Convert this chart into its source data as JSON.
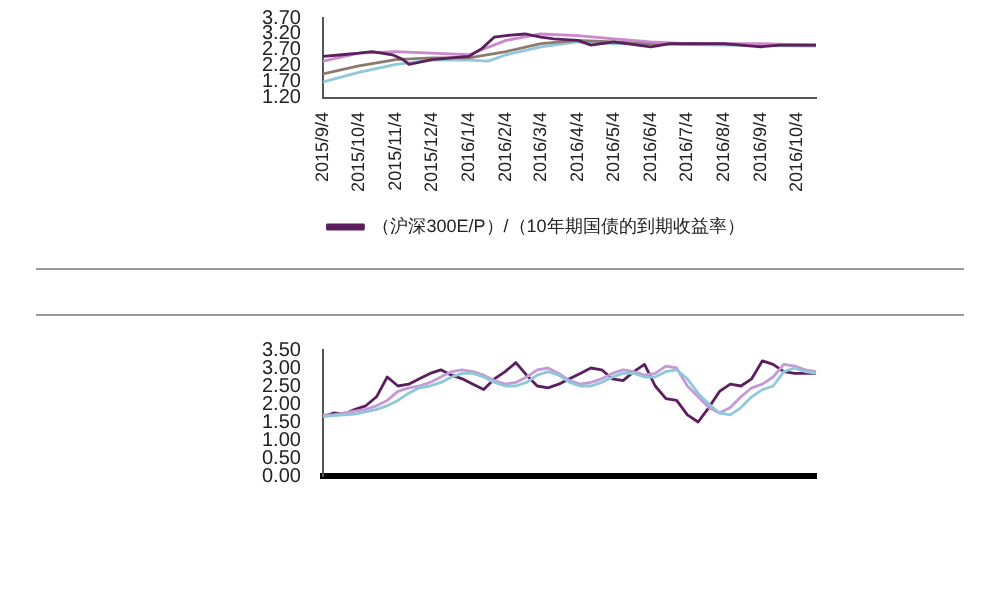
{
  "chart_data": [
    {
      "type": "line",
      "legend": "bottom",
      "grid": false,
      "marker": "none",
      "xlim": [
        "2015-09-04",
        "2016-10-20"
      ],
      "xticks": [
        {
          "value": "2015-09-04",
          "label": "2015/9/4"
        },
        {
          "value": "2015-10-04",
          "label": "2015/10/4"
        },
        {
          "value": "2015-11-04",
          "label": "2015/11/4"
        },
        {
          "value": "2015-12-04",
          "label": "2015/12/4"
        },
        {
          "value": "2016-01-04",
          "label": "2016/1/4"
        },
        {
          "value": "2016-02-04",
          "label": "2016/2/4"
        },
        {
          "value": "2016-03-04",
          "label": "2016/3/4"
        },
        {
          "value": "2016-04-04",
          "label": "2016/4/4"
        },
        {
          "value": "2016-05-04",
          "label": "2016/5/4"
        },
        {
          "value": "2016-06-04",
          "label": "2016/6/4"
        },
        {
          "value": "2016-07-04",
          "label": "2016/7/4"
        },
        {
          "value": "2016-08-04",
          "label": "2016/8/4"
        },
        {
          "value": "2016-09-04",
          "label": "2016/9/4"
        },
        {
          "value": "2016-10-04",
          "label": "2016/10/4"
        }
      ],
      "ylim": [
        1.2,
        3.7
      ],
      "yticks": [
        {
          "value": 1.2,
          "label": "1.20"
        },
        {
          "value": 1.7,
          "label": "1.70"
        },
        {
          "value": 2.2,
          "label": "2.20"
        },
        {
          "value": 2.7,
          "label": "2.70"
        },
        {
          "value": 3.2,
          "label": "3.20"
        },
        {
          "value": 3.7,
          "label": "3.70"
        }
      ],
      "series": [
        {
          "name": "（沪深300E/P）/（10年期国债的到期收益率）",
          "color": "#5b1f5e",
          "x": [
            "2015-09-04",
            "2015-09-20",
            "2015-10-04",
            "2015-10-15",
            "2015-11-01",
            "2015-11-10",
            "2015-11-15",
            "2015-12-04",
            "2015-12-20",
            "2016-01-04",
            "2016-01-15",
            "2016-01-25",
            "2016-02-04",
            "2016-02-20",
            "2016-03-04",
            "2016-03-15",
            "2016-04-04",
            "2016-04-15",
            "2016-05-04",
            "2016-06-04",
            "2016-06-20",
            "2016-07-04",
            "2016-08-04",
            "2016-09-04",
            "2016-09-20",
            "2016-10-04",
            "2016-10-20"
          ],
          "values": [
            2.5,
            2.55,
            2.6,
            2.65,
            2.55,
            2.4,
            2.25,
            2.4,
            2.45,
            2.5,
            2.75,
            3.1,
            3.15,
            3.2,
            3.1,
            3.05,
            3.0,
            2.85,
            2.95,
            2.8,
            2.9,
            2.9,
            2.9,
            2.8,
            2.85,
            2.85,
            2.85
          ]
        },
        {
          "color": "#cc88cc",
          "x": [
            "2015-09-04",
            "2015-10-04",
            "2015-11-04",
            "2015-12-04",
            "2016-01-04",
            "2016-02-04",
            "2016-03-04",
            "2016-04-04",
            "2016-05-04",
            "2016-06-04",
            "2016-07-04",
            "2016-08-04",
            "2016-09-04",
            "2016-10-20"
          ],
          "values": [
            2.35,
            2.6,
            2.65,
            2.6,
            2.55,
            3.0,
            3.2,
            3.15,
            3.05,
            2.95,
            2.9,
            2.9,
            2.9,
            2.85
          ]
        },
        {
          "color": "#8c7a6e",
          "x": [
            "2015-09-04",
            "2015-10-04",
            "2015-11-04",
            "2015-12-04",
            "2016-01-04",
            "2016-02-04",
            "2016-03-04",
            "2016-04-04",
            "2016-05-04",
            "2016-06-04",
            "2016-07-04",
            "2016-08-04",
            "2016-10-20"
          ],
          "values": [
            1.95,
            2.2,
            2.4,
            2.45,
            2.45,
            2.65,
            2.9,
            3.0,
            2.95,
            2.9,
            2.88,
            2.88,
            2.85
          ]
        },
        {
          "color": "#8fc8d8",
          "x": [
            "2015-09-04",
            "2015-10-04",
            "2015-11-04",
            "2015-12-04",
            "2016-01-04",
            "2016-01-20",
            "2016-02-04",
            "2016-03-04",
            "2016-04-04",
            "2016-05-04",
            "2016-06-04",
            "2016-08-04",
            "2016-10-20"
          ],
          "values": [
            1.7,
            2.0,
            2.25,
            2.38,
            2.38,
            2.35,
            2.55,
            2.8,
            2.95,
            2.9,
            2.88,
            2.85,
            2.82
          ]
        }
      ]
    },
    {
      "type": "line",
      "grid": false,
      "marker": "none",
      "tick_labels": "y",
      "categories": [
        null,
        null,
        null,
        null,
        null,
        null,
        null,
        null,
        null,
        null,
        null,
        null,
        null,
        null,
        null,
        null,
        null,
        null,
        null,
        null,
        null,
        null,
        null,
        null,
        null,
        null,
        null,
        null,
        null,
        null,
        null,
        null,
        null,
        null,
        null,
        null,
        null,
        null,
        null,
        null,
        null,
        null,
        null,
        null,
        null,
        null,
        null
      ],
      "ylim": [
        0,
        3.5
      ],
      "yticks": [
        {
          "value": 0,
          "label": "0.00"
        },
        {
          "value": 0.5,
          "label": "0.50"
        },
        {
          "value": 1,
          "label": "1.00"
        },
        {
          "value": 1.5,
          "label": "1.50"
        },
        {
          "value": 2,
          "label": "2.00"
        },
        {
          "value": 2.5,
          "label": "2.50"
        },
        {
          "value": 3,
          "label": "3.00"
        },
        {
          "value": 3.5,
          "label": "3.50"
        }
      ],
      "series": [
        {
          "color": "#8fc8d8",
          "values": [
            1.65,
            1.68,
            1.7,
            1.72,
            1.78,
            1.85,
            1.95,
            2.1,
            2.3,
            2.45,
            2.5,
            2.6,
            2.75,
            2.85,
            2.85,
            2.75,
            2.6,
            2.5,
            2.5,
            2.6,
            2.8,
            2.9,
            2.8,
            2.6,
            2.5,
            2.5,
            2.6,
            2.75,
            2.85,
            2.85,
            2.75,
            2.75,
            2.9,
            2.95,
            2.7,
            2.3,
            2.0,
            1.75,
            1.7,
            1.9,
            2.2,
            2.4,
            2.5,
            2.9,
            3.0,
            2.9,
            2.85
          ]
        },
        {
          "color": "#c49ad6",
          "values": [
            1.7,
            1.7,
            1.75,
            1.8,
            1.85,
            1.95,
            2.1,
            2.35,
            2.45,
            2.5,
            2.6,
            2.75,
            2.9,
            2.95,
            2.9,
            2.8,
            2.65,
            2.55,
            2.6,
            2.75,
            2.95,
            3.0,
            2.85,
            2.65,
            2.55,
            2.6,
            2.7,
            2.85,
            2.95,
            2.9,
            2.8,
            2.85,
            3.05,
            3.0,
            2.5,
            2.2,
            1.9,
            1.75,
            1.9,
            2.2,
            2.45,
            2.55,
            2.75,
            3.1,
            3.05,
            2.95,
            2.9
          ]
        },
        {
          "color": "#5b1f5e",
          "values": [
            1.65,
            1.75,
            1.72,
            1.85,
            1.95,
            2.2,
            2.75,
            2.5,
            2.55,
            2.7,
            2.85,
            2.95,
            2.8,
            2.7,
            2.55,
            2.4,
            2.7,
            2.9,
            3.15,
            2.8,
            2.5,
            2.45,
            2.55,
            2.7,
            2.85,
            3.0,
            2.95,
            2.7,
            2.65,
            2.9,
            3.1,
            2.5,
            2.15,
            2.1,
            1.7,
            1.5,
            1.9,
            2.35,
            2.55,
            2.5,
            2.7,
            3.2,
            3.1,
            2.9,
            2.85,
            2.85,
            2.85
          ]
        }
      ]
    }
  ]
}
